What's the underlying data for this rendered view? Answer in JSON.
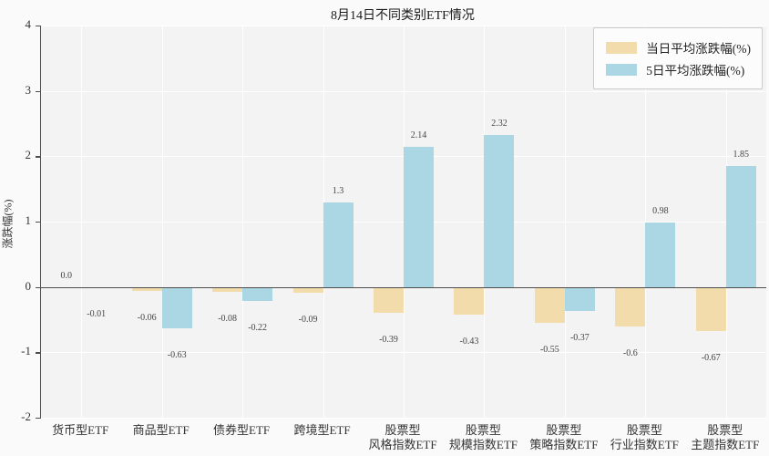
{
  "chart_data": {
    "type": "bar",
    "title": "8月14日不同类别ETF情况",
    "ylabel": "涨跌幅(%)",
    "ylim": [
      -2,
      4
    ],
    "yticks": [
      4,
      3,
      2,
      1,
      0,
      -1,
      -2
    ],
    "grid": true,
    "legend_position": "upper right",
    "categories": [
      "货币型ETF",
      "商品型ETF",
      "债券型ETF",
      "跨境型ETF",
      "股票型\n风格指数ETF",
      "股票型\n规模指数ETF",
      "股票型\n策略指数ETF",
      "股票型\n行业指数ETF",
      "股票型\n主题指数ETF"
    ],
    "series": [
      {
        "name": "当日平均涨跌幅(%)",
        "color": "#f3dcab",
        "values": [
          0.0,
          -0.06,
          -0.08,
          -0.09,
          -0.39,
          -0.43,
          -0.55,
          -0.6,
          -0.67
        ],
        "labels": [
          "0.0",
          "-0.06",
          "-0.08",
          "-0.09",
          "-0.39",
          "-0.43",
          "-0.55",
          "-0.6",
          "-0.67"
        ]
      },
      {
        "name": "5日平均涨跌幅(%)",
        "color": "#abd6e3",
        "values": [
          -0.01,
          -0.63,
          -0.22,
          1.3,
          2.14,
          2.32,
          -0.37,
          0.98,
          1.85
        ],
        "labels": [
          "-0.01",
          "-0.63",
          "-0.22",
          "1.3",
          "2.14",
          "2.32",
          "-0.37",
          "0.98",
          "1.85"
        ]
      }
    ],
    "style": {
      "figure_bg": "#fafafa",
      "plot_bg": "#f3f3f4",
      "grid_color": "#ffffff",
      "axis_color": "#4d4d4d",
      "tick_label_color": "#333333",
      "value_label_color": "#444444"
    }
  }
}
